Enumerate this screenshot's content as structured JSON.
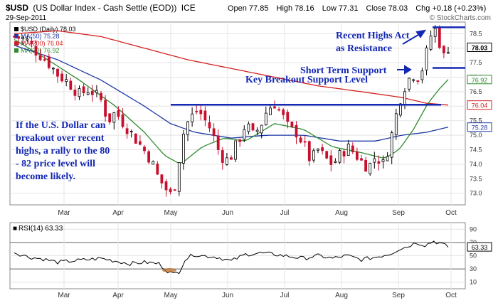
{
  "header": {
    "symbol": "$USD",
    "description": "(US Dollar Index - Cash Settle (EOD))",
    "exchange": "ICE",
    "date": "29-Sep-2011",
    "open_label": "Open",
    "open": "77.85",
    "high_label": "High",
    "high": "78.16",
    "low_label": "Low",
    "low": "77.31",
    "close_label": "Close",
    "close": "78.03",
    "chg_label": "Chg",
    "chg": "+0.18 (+0.23%)",
    "watermark": "© StockCharts.com"
  },
  "legend": [
    {
      "label": "$USD (Daily) 78.03",
      "color": "#000000"
    },
    {
      "label": "MA(50) 75.28",
      "color": "#1f3aa6"
    },
    {
      "label": "MA(200) 76.04",
      "color": "#d42020"
    },
    {
      "label": "MA(20) 76.92",
      "color": "#2e8b2e"
    }
  ],
  "annotations": {
    "recent_highs_1": "Recent Highs Act",
    "recent_highs_2": "as Resistance",
    "short_term": "Short Term Support",
    "key_breakout": "Key Breakout Support Level",
    "note": [
      "If the U.S. Dollar can",
      "breakout over recent",
      "highs, a rally to the 80",
      "- 82 price level will",
      "become likely."
    ]
  },
  "price_tags": [
    {
      "value": "78.03",
      "bg": "#ffffff",
      "fg": "#000000"
    },
    {
      "value": "76.92",
      "bg": "#ffffff",
      "fg": "#2e8b2e"
    },
    {
      "value": "76.04",
      "bg": "#ffffff",
      "fg": "#d42020"
    },
    {
      "value": "75.28",
      "bg": "#ffffff",
      "fg": "#1f3aa6"
    }
  ],
  "rsi": {
    "label": "RSI(14) 63.33",
    "value_tag": "63.33",
    "ticks": [
      "90",
      "70",
      "50",
      "30",
      "10"
    ]
  },
  "chart_data": {
    "type": "candlestick",
    "price_axis_ticks": [
      73.0,
      73.5,
      74.0,
      74.5,
      75.0,
      75.5,
      76.0,
      76.5,
      77.0,
      77.5,
      78.0,
      78.5
    ],
    "ylim": [
      72.6,
      78.9
    ],
    "months": [
      "Mar",
      "Apr",
      "May",
      "Jun",
      "Jul",
      "Aug",
      "Sep",
      "Oct"
    ],
    "key_levels": {
      "resistance": 78.72,
      "short_term_support": 77.32,
      "key_breakout": 76.05
    },
    "close_path": [
      [
        0,
        78.4
      ],
      [
        8,
        78.3
      ],
      [
        15,
        77.9
      ],
      [
        22,
        77.6
      ],
      [
        30,
        77.1
      ],
      [
        38,
        76.8
      ],
      [
        45,
        76.4
      ],
      [
        52,
        76.6
      ],
      [
        60,
        76.2
      ],
      [
        65,
        75.5
      ],
      [
        70,
        75.8
      ],
      [
        76,
        75.4
      ],
      [
        82,
        75.0
      ],
      [
        88,
        74.6
      ],
      [
        94,
        74.2
      ],
      [
        99,
        73.6
      ],
      [
        104,
        73.2
      ],
      [
        108,
        72.95
      ],
      [
        112,
        73.4
      ],
      [
        115,
        74.6
      ],
      [
        118,
        75.3
      ],
      [
        122,
        75.6
      ],
      [
        127,
        75.9
      ],
      [
        132,
        75.5
      ],
      [
        136,
        75.2
      ],
      [
        141,
        74.5
      ],
      [
        146,
        74.1
      ],
      [
        150,
        74.3
      ],
      [
        155,
        74.8
      ],
      [
        160,
        75.4
      ],
      [
        165,
        75.0
      ],
      [
        170,
        75.3
      ],
      [
        175,
        75.9
      ],
      [
        180,
        76.1
      ],
      [
        185,
        75.7
      ],
      [
        190,
        75.2
      ],
      [
        195,
        75.1
      ],
      [
        200,
        74.7
      ],
      [
        205,
        74.1
      ],
      [
        210,
        74.5
      ],
      [
        215,
        74.2
      ],
      [
        220,
        74.0
      ],
      [
        225,
        74.3
      ],
      [
        230,
        74.6
      ],
      [
        235,
        74.4
      ],
      [
        240,
        74.1
      ],
      [
        245,
        73.9
      ],
      [
        250,
        74.3
      ],
      [
        255,
        74.0
      ],
      [
        260,
        74.8
      ],
      [
        264,
        75.7
      ],
      [
        268,
        76.5
      ],
      [
        272,
        76.9
      ],
      [
        276,
        77.1
      ],
      [
        280,
        77.0
      ],
      [
        284,
        77.6
      ],
      [
        287,
        78.3
      ],
      [
        290,
        78.7
      ],
      [
        293,
        78.5
      ],
      [
        296,
        77.6
      ],
      [
        300,
        78.03
      ]
    ],
    "series": [
      {
        "name": "MA(50)",
        "color": "#1f3aa6",
        "values": [
          [
            0,
            78.1
          ],
          [
            30,
            77.6
          ],
          [
            60,
            76.9
          ],
          [
            90,
            76.0
          ],
          [
            108,
            75.4
          ],
          [
            125,
            75.1
          ],
          [
            150,
            74.9
          ],
          [
            175,
            75.0
          ],
          [
            200,
            75.0
          ],
          [
            225,
            74.8
          ],
          [
            250,
            74.8
          ],
          [
            268,
            75.0
          ],
          [
            285,
            75.1
          ],
          [
            300,
            75.28
          ]
        ]
      },
      {
        "name": "MA(200)",
        "color": "#d42020",
        "values": [
          [
            0,
            78.5
          ],
          [
            30,
            78.6
          ],
          [
            60,
            78.4
          ],
          [
            90,
            78.0
          ],
          [
            120,
            77.6
          ],
          [
            150,
            77.3
          ],
          [
            180,
            77.0
          ],
          [
            210,
            76.7
          ],
          [
            240,
            76.5
          ],
          [
            268,
            76.3
          ],
          [
            285,
            76.1
          ],
          [
            300,
            76.04
          ]
        ]
      },
      {
        "name": "MA(20)",
        "color": "#2e8b2e",
        "values": [
          [
            0,
            78.3
          ],
          [
            20,
            77.7
          ],
          [
            45,
            76.9
          ],
          [
            70,
            76.0
          ],
          [
            90,
            75.1
          ],
          [
            104,
            74.3
          ],
          [
            115,
            74.0
          ],
          [
            130,
            74.6
          ],
          [
            145,
            74.9
          ],
          [
            160,
            74.8
          ],
          [
            180,
            75.4
          ],
          [
            200,
            75.2
          ],
          [
            220,
            74.6
          ],
          [
            240,
            74.4
          ],
          [
            256,
            74.2
          ],
          [
            266,
            74.5
          ],
          [
            276,
            75.2
          ],
          [
            286,
            76.1
          ],
          [
            294,
            76.6
          ],
          [
            300,
            76.92
          ]
        ]
      }
    ],
    "rsi_path": [
      [
        0,
        55
      ],
      [
        10,
        48
      ],
      [
        20,
        45
      ],
      [
        30,
        40
      ],
      [
        40,
        42
      ],
      [
        50,
        44
      ],
      [
        60,
        46
      ],
      [
        70,
        42
      ],
      [
        80,
        38
      ],
      [
        90,
        40
      ],
      [
        100,
        38
      ],
      [
        106,
        27
      ],
      [
        110,
        22
      ],
      [
        114,
        26
      ],
      [
        118,
        44
      ],
      [
        124,
        52
      ],
      [
        130,
        50
      ],
      [
        140,
        48
      ],
      [
        150,
        42
      ],
      [
        160,
        52
      ],
      [
        170,
        54
      ],
      [
        180,
        52
      ],
      [
        190,
        49
      ],
      [
        200,
        46
      ],
      [
        210,
        50
      ],
      [
        220,
        46
      ],
      [
        230,
        50
      ],
      [
        240,
        44
      ],
      [
        250,
        48
      ],
      [
        260,
        53
      ],
      [
        266,
        60
      ],
      [
        272,
        64
      ],
      [
        278,
        70
      ],
      [
        284,
        66
      ],
      [
        290,
        72
      ],
      [
        294,
        69
      ],
      [
        300,
        63.33
      ]
    ]
  }
}
